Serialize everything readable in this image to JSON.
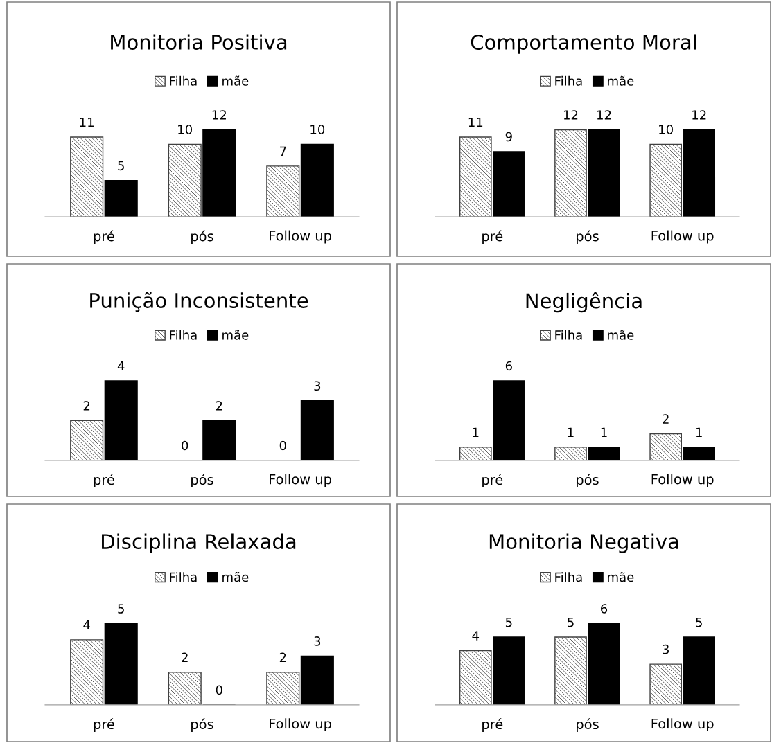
{
  "chart_data": [
    {
      "type": "bar",
      "title": "Monitoria Positiva",
      "categories": [
        "pré",
        "pós",
        "Follow up"
      ],
      "legend": "top",
      "data_labels": true,
      "grid": false,
      "series": [
        {
          "name": "Filha",
          "color": "#404040",
          "values": [
            11,
            10,
            7
          ]
        },
        {
          "name": "mãe",
          "color": "#000000",
          "values": [
            5,
            12,
            10
          ]
        }
      ]
    },
    {
      "type": "bar",
      "title": "Comportamento Moral",
      "categories": [
        "pré",
        "pós",
        "Follow up"
      ],
      "legend": "top",
      "data_labels": true,
      "grid": false,
      "series": [
        {
          "name": "Filha",
          "color": "#404040",
          "values": [
            11,
            12,
            10
          ]
        },
        {
          "name": "mãe",
          "color": "#000000",
          "values": [
            9,
            12,
            12
          ]
        }
      ]
    },
    {
      "type": "bar",
      "title": "Punição Inconsistente",
      "categories": [
        "pré",
        "pós",
        "Follow up"
      ],
      "legend": "top",
      "data_labels": true,
      "grid": false,
      "series": [
        {
          "name": "Filha",
          "color": "#404040",
          "values": [
            2,
            0,
            0
          ]
        },
        {
          "name": "mãe",
          "color": "#000000",
          "values": [
            4,
            2,
            3
          ]
        }
      ]
    },
    {
      "type": "bar",
      "title": "Negligência",
      "categories": [
        "pré",
        "pós",
        "Follow up"
      ],
      "legend": "top",
      "data_labels": true,
      "grid": false,
      "series": [
        {
          "name": "Filha",
          "color": "#404040",
          "values": [
            1,
            1,
            2
          ]
        },
        {
          "name": "mãe",
          "color": "#000000",
          "values": [
            6,
            1,
            1
          ]
        }
      ]
    },
    {
      "type": "bar",
      "title": "Disciplina Relaxada",
      "categories": [
        "pré",
        "pós",
        "Follow up"
      ],
      "legend": "top",
      "data_labels": true,
      "grid": false,
      "series": [
        {
          "name": "Filha",
          "color": "#404040",
          "values": [
            4,
            2,
            2
          ]
        },
        {
          "name": "mãe",
          "color": "#000000",
          "values": [
            5,
            0,
            3
          ]
        }
      ]
    },
    {
      "type": "bar",
      "title": "Monitoria Negativa",
      "categories": [
        "pré",
        "pós",
        "Follow up"
      ],
      "legend": "top",
      "data_labels": true,
      "grid": false,
      "series": [
        {
          "name": "Filha",
          "color": "#404040",
          "values": [
            4,
            5,
            3
          ]
        },
        {
          "name": "mãe",
          "color": "#000000",
          "values": [
            5,
            6,
            5
          ]
        }
      ]
    }
  ]
}
